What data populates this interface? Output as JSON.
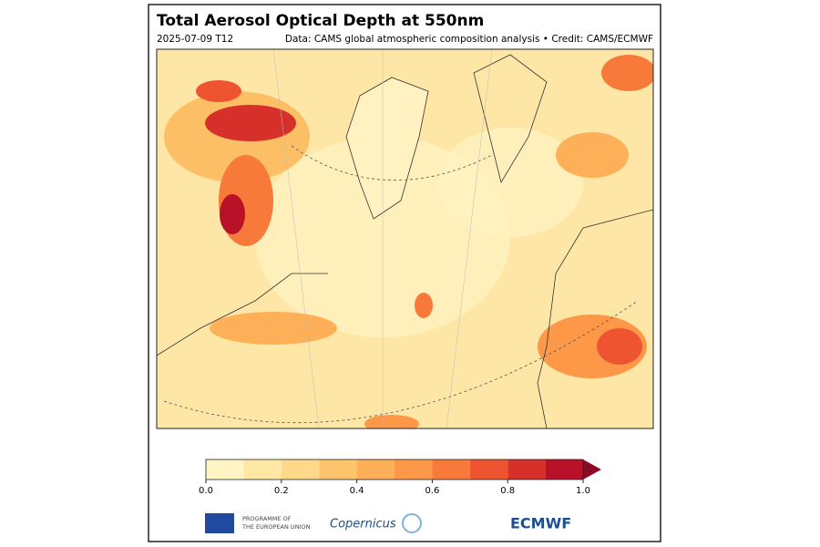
{
  "header": {
    "title": "Total Aerosol Optical Depth at 550nm",
    "date": "2025-07-09 T12",
    "credit": "Data: CAMS global atmospheric composition analysis • Credit: CAMS/ECMWF"
  },
  "colorbar": {
    "range": [
      0,
      1
    ],
    "levels": [
      0,
      0.1,
      0.2,
      0.3,
      0.4,
      0.5,
      0.6,
      0.7,
      0.8,
      0.9,
      1
    ],
    "colors": [
      "#fff4c4",
      "#fee8a4",
      "#fed98a",
      "#fec56c",
      "#fdb057",
      "#fc9848",
      "#f87a3a",
      "#ee5430",
      "#d7302a",
      "#b81128"
    ],
    "extend_color": "#8c0a24",
    "ticks": [
      {
        "value": 0,
        "label": "0.0"
      },
      0.2,
      0.4,
      0.6,
      0.8,
      {
        "value": 1,
        "label": "1.0"
      }
    ]
  },
  "logos": {
    "eu_line1": "PROGRAMME OF",
    "eu_line2": "THE EUROPEAN UNION",
    "copernicus": "Copernicus",
    "ecmwf": "ECMWF"
  }
}
